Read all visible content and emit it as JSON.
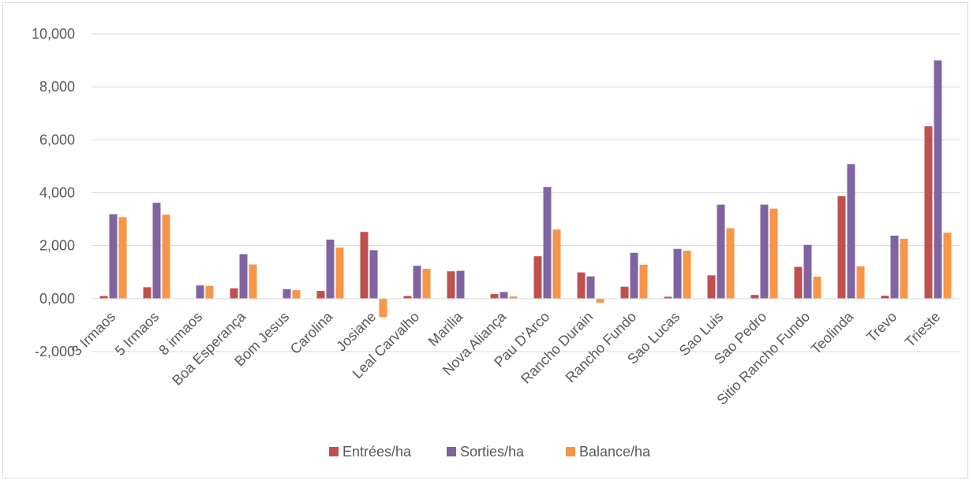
{
  "chart_data": {
    "type": "bar",
    "title": "",
    "xlabel": "",
    "ylabel": "",
    "ylim": [
      -2000,
      10000
    ],
    "y_ticks": [
      -2000,
      0,
      2000,
      4000,
      6000,
      8000,
      10000
    ],
    "y_tick_labels": [
      "-2,000",
      "0,000",
      "2,000",
      "4,000",
      "6,000",
      "8,000",
      "10,000"
    ],
    "grid": true,
    "legend_position": "bottom",
    "categories": [
      "3 Irmaos",
      "5 Irmaos",
      "8 irmaos",
      "Boa Esperança",
      "Bom Jesus",
      "Carolina",
      "Josiane",
      "Leal Carvalho",
      "Marilia",
      "Nova Aliança",
      "Pau D'Arco",
      "Rancho Durain",
      "Rancho Fundo",
      "Sao Lucas",
      "Sao Luis",
      "Sao Pedro",
      "Sitio Rancho Fundo",
      "Teolinda",
      "Trevo",
      "Trieste"
    ],
    "series": [
      {
        "name": "Entrées/ha",
        "color": "#C0504D",
        "values": [
          100,
          430,
          0,
          390,
          0,
          290,
          2520,
          100,
          1030,
          170,
          1600,
          990,
          450,
          70,
          880,
          140,
          1200,
          3870,
          110,
          6510
        ]
      },
      {
        "name": "Sorties/ha",
        "color": "#8064A2",
        "values": [
          3190,
          3620,
          500,
          1680,
          360,
          2230,
          1830,
          1240,
          1050,
          250,
          4220,
          840,
          1730,
          1880,
          3550,
          3550,
          2030,
          5080,
          2380,
          9000
        ]
      },
      {
        "name": "Balance/ha",
        "color": "#F79646",
        "values": [
          3080,
          3170,
          480,
          1290,
          320,
          1930,
          -700,
          1130,
          0,
          80,
          2610,
          -150,
          1280,
          1810,
          2660,
          3400,
          830,
          1220,
          2260,
          2490
        ]
      }
    ]
  }
}
